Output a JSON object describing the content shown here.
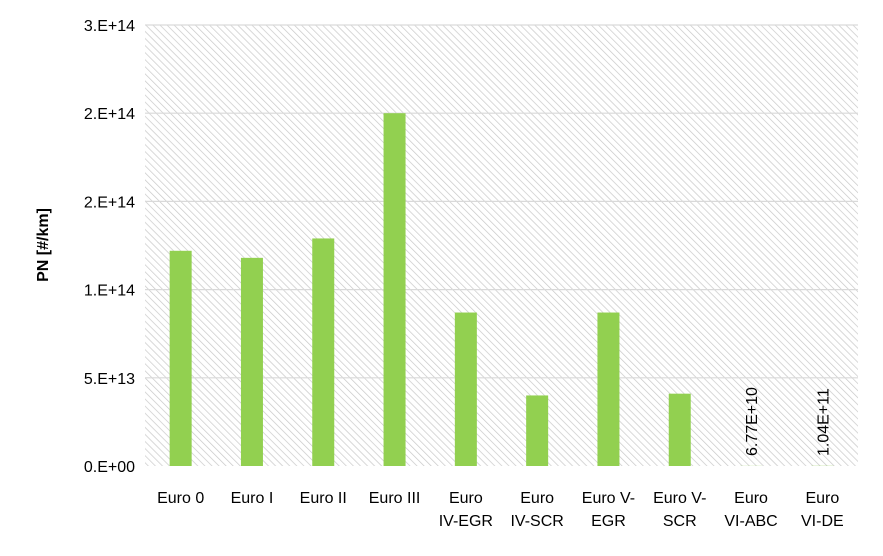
{
  "chart_data": {
    "type": "bar",
    "title": "",
    "xlabel": "",
    "ylabel": "PN [#/km]",
    "ylim": [
      0,
      250000000000000
    ],
    "y_ticks": [
      {
        "value": 0,
        "label": "0.E+00"
      },
      {
        "value": 50000000000000,
        "label": "5.E+13"
      },
      {
        "value": 100000000000000,
        "label": "1.E+14"
      },
      {
        "value": 150000000000000,
        "label": "2.E+14"
      },
      {
        "value": 200000000000000,
        "label": "2.E+14"
      },
      {
        "value": 250000000000000,
        "label": "3.E+14"
      }
    ],
    "categories": [
      [
        "Euro 0"
      ],
      [
        "Euro I"
      ],
      [
        "Euro II"
      ],
      [
        "Euro III"
      ],
      [
        "Euro",
        "IV-EGR"
      ],
      [
        "Euro",
        "IV-SCR"
      ],
      [
        "Euro V-",
        "EGR"
      ],
      [
        "Euro V-",
        "SCR"
      ],
      [
        "Euro",
        "VI-ABC"
      ],
      [
        "Euro",
        "VI-DE"
      ]
    ],
    "values": [
      122000000000000,
      118000000000000,
      129000000000000,
      200000000000000,
      87000000000000,
      40000000000000,
      87000000000000,
      41000000000000,
      67700000000,
      104000000000
    ],
    "data_labels": [
      "",
      "",
      "",
      "",
      "",
      "",
      "",
      "",
      "6.77E+10",
      "1.04E+11"
    ],
    "grid": true,
    "colors": {
      "bar": "#92d050",
      "plot_background": "#ffffff",
      "hatch": "#c8c8c8",
      "gridline": "#d9d9d9",
      "text": "#000000"
    }
  }
}
